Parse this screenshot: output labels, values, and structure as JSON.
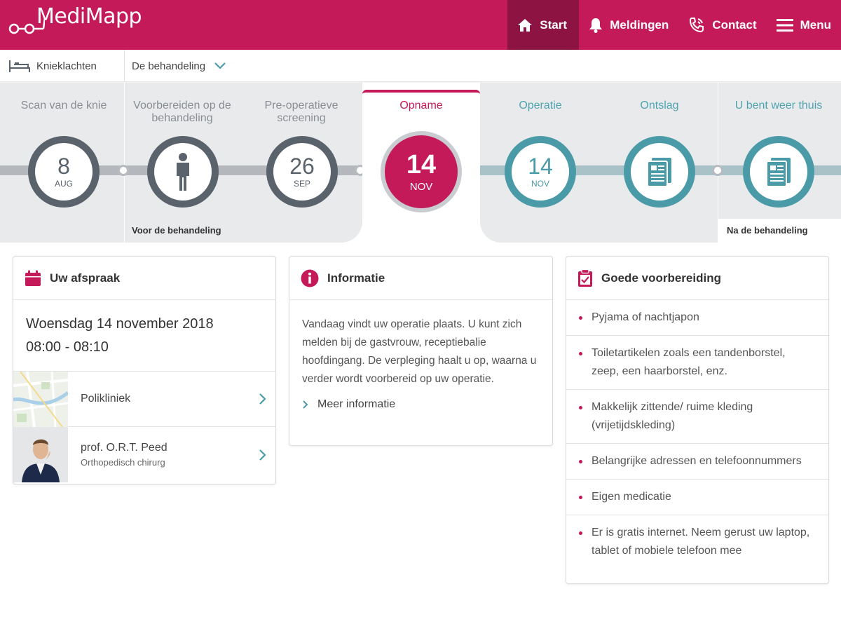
{
  "header": {
    "logo_text": "MediMapp",
    "nav": [
      {
        "label": "Start",
        "icon": "home-icon",
        "active": true
      },
      {
        "label": "Meldingen",
        "icon": "bell-icon"
      },
      {
        "label": "Contact",
        "icon": "phone-icon"
      },
      {
        "label": "Menu",
        "icon": "hamburger-icon"
      }
    ]
  },
  "subbar": {
    "condition": "Knieklachten",
    "section": "De behandeling"
  },
  "timeline": {
    "steps": [
      {
        "label": "Scan van de knie",
        "day": "8",
        "month": "AUG"
      },
      {
        "label": "Voorbereiden op de behandeling"
      },
      {
        "label": "Pre-operatieve screening",
        "day": "26",
        "month": "SEP"
      },
      {
        "label": "Opname",
        "day": "14",
        "month": "NOV"
      },
      {
        "label": "Operatie",
        "day": "14",
        "month": "NOV"
      },
      {
        "label": "Ontslag"
      },
      {
        "label": "U bent weer thuis"
      }
    ],
    "phase_before": "Voor de behandeling",
    "phase_after": "Na de behandeling"
  },
  "appointment": {
    "title": "Uw afspraak",
    "date": "Woensdag 14 november 2018",
    "time": "08:00 - 08:10",
    "location": "Polikliniek",
    "doctor_name": "prof. O.R.T. Peed",
    "doctor_role": "Orthopedisch chirurg"
  },
  "information": {
    "title": "Informatie",
    "body": "Vandaag vindt uw operatie plaats. U kunt zich melden bij de gastvrouw, receptiebalie hoofdingang. De verpleging haalt u op, waarna u verder wordt voorbereid op uw operatie.",
    "more": "Meer informatie"
  },
  "preparation": {
    "title": "Goede voorbereiding",
    "items": [
      "Pyjama of nachtjapon",
      "Toiletartikelen zoals een tandenborstel, zeep, een haarborstel, enz.",
      "Makkelijk zittende/ ruime kleding (vrijetijdskleding)",
      "Belangrijke adressen en telefoonnummers",
      "Eigen medicatie",
      "Er is gratis internet. Neem gerust uw laptop, tablet of mobiele telefoon mee"
    ]
  },
  "colors": {
    "brand": "#c41a59",
    "brand_dark": "#8c1342",
    "teal": "#4b9aa8",
    "dark_gray": "#5a626c"
  }
}
